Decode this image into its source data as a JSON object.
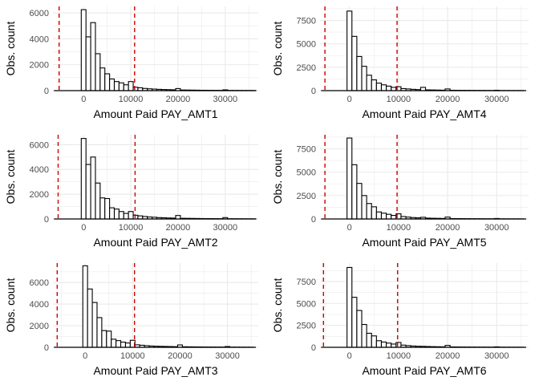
{
  "figure": {
    "background": "#ffffff",
    "grid_color": "#ebebeb",
    "bar_fill": "#ffffff",
    "bar_stroke": "#000000",
    "vline_color": "#cc0000"
  },
  "chart_data": [
    {
      "type": "bar",
      "subtype": "histogram",
      "xlabel": "Amount Paid PAY_AMT1",
      "ylabel": "Obs. count",
      "xlim": [
        -6500,
        37000
      ],
      "ylim": [
        0,
        6500
      ],
      "x_ticks": [
        0,
        10000,
        20000,
        30000
      ],
      "x_tick_labels": [
        "0",
        "10000",
        "20000",
        "30000"
      ],
      "y_ticks": [
        0,
        2000,
        4000,
        6000
      ],
      "y_tick_labels": [
        "0",
        "2000",
        "4000",
        "6000"
      ],
      "bin_start": -500,
      "bin_width": 1000,
      "counts": [
        6250,
        4150,
        5250,
        2850,
        1750,
        1300,
        900,
        700,
        600,
        450,
        700,
        260,
        220,
        170,
        140,
        120,
        100,
        85,
        75,
        65,
        160,
        50,
        45,
        40,
        35,
        30,
        28,
        25,
        22,
        20,
        60,
        18,
        16,
        15,
        14,
        12,
        10
      ],
      "vlines": [
        -5200,
        10800
      ],
      "grid": true
    },
    {
      "type": "bar",
      "subtype": "histogram",
      "xlabel": "Amount Paid PAY_AMT4",
      "ylabel": "Obs. count",
      "xlim": [
        -6000,
        36500
      ],
      "ylim": [
        0,
        9000
      ],
      "x_ticks": [
        0,
        10000,
        20000,
        30000
      ],
      "x_tick_labels": [
        "0",
        "10000",
        "20000",
        "30000"
      ],
      "y_ticks": [
        0,
        2500,
        5000,
        7500
      ],
      "y_tick_labels": [
        "0",
        "2500",
        "5000",
        "7500"
      ],
      "bin_start": -500,
      "bin_width": 1000,
      "counts": [
        8500,
        5800,
        3650,
        2600,
        1650,
        1150,
        800,
        620,
        480,
        350,
        420,
        220,
        180,
        140,
        110,
        350,
        80,
        70,
        60,
        50,
        180,
        40,
        35,
        30,
        28,
        25,
        22,
        20,
        18,
        16,
        40,
        14,
        12,
        11,
        10,
        9
      ],
      "vlines": [
        -5000,
        9700
      ],
      "grid": true
    },
    {
      "type": "bar",
      "subtype": "histogram",
      "xlabel": "Amount Paid PAY_AMT2",
      "ylabel": "Obs. count",
      "xlim": [
        -6500,
        37000
      ],
      "ylim": [
        0,
        6800
      ],
      "x_ticks": [
        0,
        10000,
        20000,
        30000
      ],
      "x_tick_labels": [
        "0",
        "10000",
        "20000",
        "30000"
      ],
      "y_ticks": [
        0,
        2000,
        4000,
        6000
      ],
      "y_tick_labels": [
        "0",
        "2000",
        "4000",
        "6000"
      ],
      "bin_start": -500,
      "bin_width": 1000,
      "counts": [
        6500,
        4400,
        5000,
        2900,
        1700,
        1650,
        900,
        800,
        600,
        450,
        600,
        300,
        250,
        200,
        160,
        140,
        110,
        95,
        80,
        70,
        280,
        55,
        50,
        45,
        40,
        35,
        30,
        28,
        25,
        22,
        110,
        20,
        18,
        16,
        14,
        12,
        10
      ],
      "vlines": [
        -5400,
        10900
      ],
      "grid": true
    },
    {
      "type": "bar",
      "subtype": "histogram",
      "xlabel": "Amount Paid PAY_AMT5",
      "ylabel": "Obs. count",
      "xlim": [
        -6000,
        36500
      ],
      "ylim": [
        0,
        9000
      ],
      "x_ticks": [
        0,
        10000,
        20000,
        30000
      ],
      "x_tick_labels": [
        "0",
        "10000",
        "20000",
        "30000"
      ],
      "y_ticks": [
        0,
        2500,
        5000,
        7500
      ],
      "y_tick_labels": [
        "0",
        "2500",
        "5000",
        "7500"
      ],
      "bin_start": -500,
      "bin_width": 1000,
      "counts": [
        8650,
        5800,
        3800,
        2500,
        1650,
        1300,
        750,
        620,
        500,
        380,
        550,
        260,
        200,
        150,
        120,
        180,
        90,
        75,
        65,
        55,
        200,
        45,
        40,
        35,
        30,
        28,
        25,
        22,
        20,
        18,
        50,
        16,
        14,
        12,
        11,
        10
      ],
      "vlines": [
        -5000,
        9700
      ],
      "grid": true
    },
    {
      "type": "bar",
      "subtype": "histogram",
      "xlabel": "Amount Paid PAY_AMT3",
      "ylabel": "Obs. count",
      "xlim": [
        -6800,
        36500
      ],
      "ylim": [
        0,
        7800
      ],
      "x_ticks": [
        0,
        10000,
        20000,
        30000
      ],
      "x_tick_labels": [
        "0",
        "10000",
        "20000",
        "30000"
      ],
      "y_ticks": [
        0,
        2000,
        4000,
        6000
      ],
      "y_tick_labels": [
        "0",
        "2000",
        "4000",
        "6000"
      ],
      "bin_start": -500,
      "bin_width": 1000,
      "counts": [
        7550,
        5400,
        4150,
        2750,
        1550,
        1500,
        750,
        620,
        480,
        400,
        650,
        230,
        190,
        150,
        120,
        100,
        90,
        80,
        70,
        60,
        220,
        50,
        45,
        40,
        35,
        30,
        28,
        25,
        22,
        20,
        70,
        18,
        16,
        14,
        12,
        10
      ],
      "vlines": [
        -5900,
        10400
      ],
      "grid": true
    },
    {
      "type": "bar",
      "subtype": "histogram",
      "xlabel": "Amount Paid PAY_AMT6",
      "ylabel": "Obs. count",
      "xlim": [
        -6000,
        36500
      ],
      "ylim": [
        0,
        9600
      ],
      "x_ticks": [
        0,
        10000,
        20000,
        30000
      ],
      "x_tick_labels": [
        "0",
        "10000",
        "20000",
        "30000"
      ],
      "y_ticks": [
        0,
        2500,
        5000,
        7500
      ],
      "y_tick_labels": [
        "0",
        "2500",
        "5000",
        "7500"
      ],
      "bin_start": -500,
      "bin_width": 1000,
      "counts": [
        9100,
        5700,
        4200,
        2600,
        1600,
        1300,
        750,
        600,
        480,
        370,
        550,
        250,
        190,
        150,
        120,
        110,
        90,
        75,
        65,
        55,
        220,
        45,
        40,
        35,
        30,
        28,
        25,
        22,
        20,
        18,
        50,
        16,
        14,
        12,
        11,
        10
      ],
      "vlines": [
        -5300,
        9800
      ],
      "grid": true
    }
  ]
}
